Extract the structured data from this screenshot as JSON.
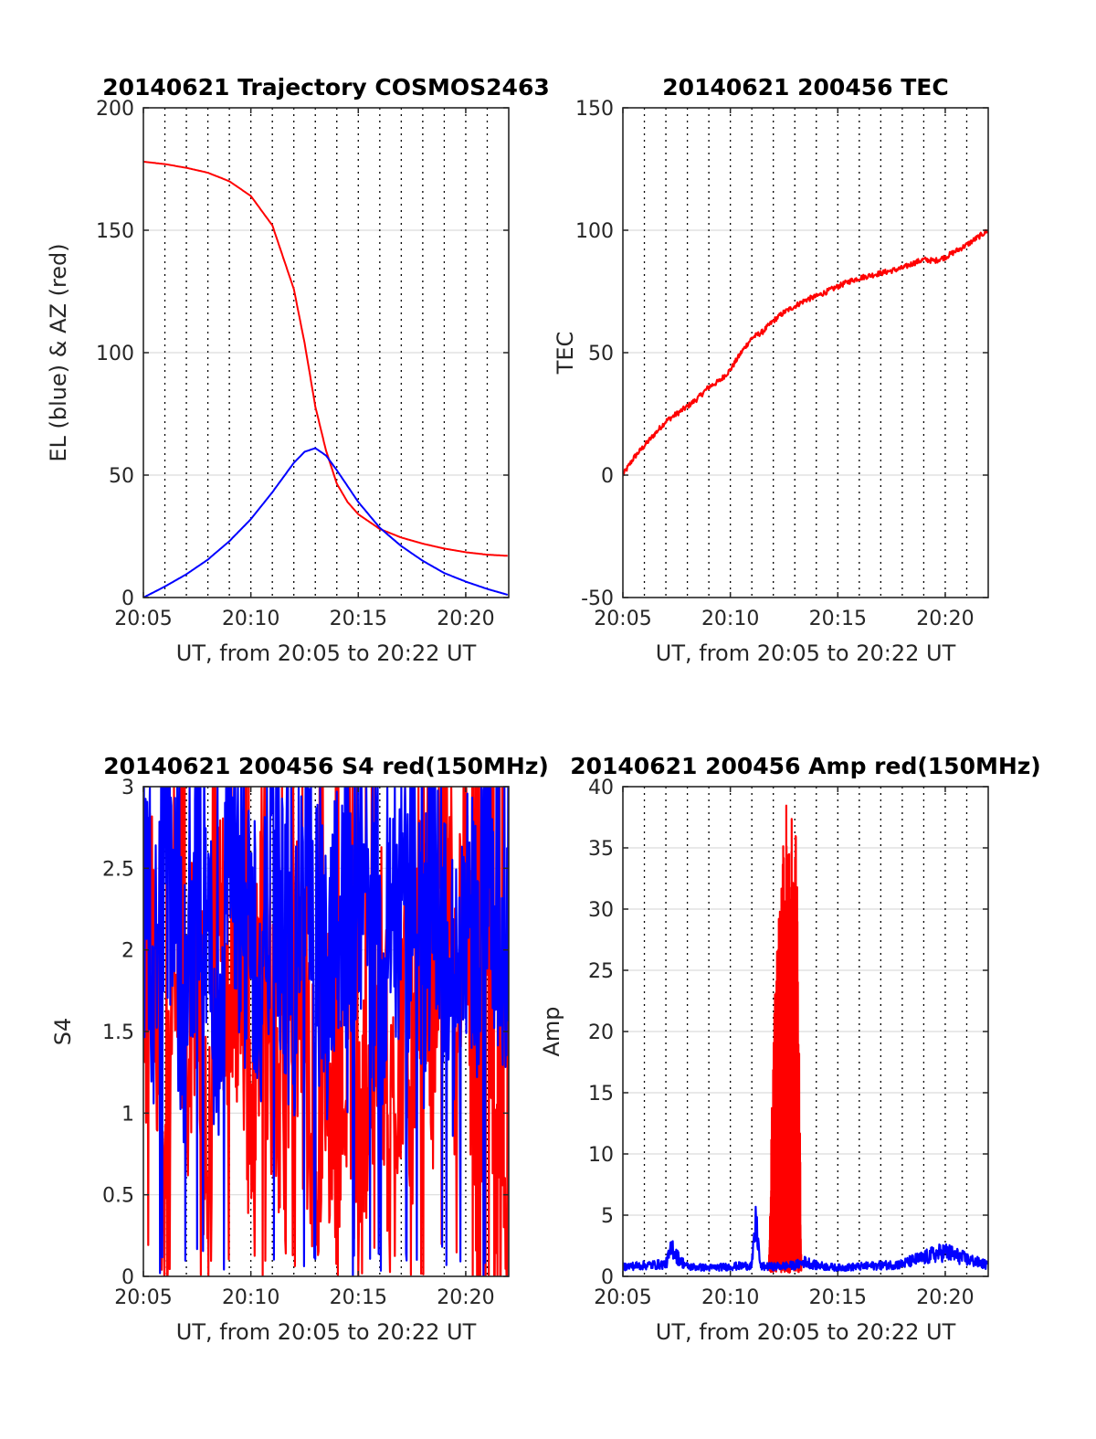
{
  "chart_data": [
    {
      "type": "line",
      "title": "20140621 Trajectory COSMOS2463",
      "xlabel": "UT, from 20:05 to 20:22 UT",
      "ylabel": "EL (blue) & AZ (red)",
      "xlim": [
        0,
        17
      ],
      "ylim": [
        0,
        200
      ],
      "xticks": [
        0,
        5,
        10,
        15
      ],
      "xticklabels": [
        "20:05",
        "20:10",
        "20:15",
        "20:20"
      ],
      "yticks": [
        0,
        50,
        100,
        150,
        200
      ],
      "yticklabels": [
        "0",
        "50",
        "100",
        "150",
        "200"
      ],
      "grid": true,
      "series": [
        {
          "color": "#ff0000",
          "x": [
            0,
            1,
            2,
            3,
            4,
            5,
            6,
            7,
            7.5,
            8,
            8.5,
            9,
            9.5,
            10,
            11,
            12,
            13,
            14,
            15,
            16,
            17
          ],
          "values": [
            178,
            177,
            175.5,
            173.5,
            170,
            164,
            152,
            126,
            104,
            78,
            60,
            46.5,
            39,
            34,
            28,
            24.5,
            22,
            20,
            18.5,
            17.5,
            17
          ]
        },
        {
          "color": "#0000ff",
          "x": [
            0,
            1,
            2,
            3,
            4,
            5,
            6,
            7,
            7.5,
            8,
            8.5,
            9,
            10,
            11,
            12,
            13,
            14,
            15,
            16,
            17
          ],
          "values": [
            0,
            4.5,
            9.5,
            15.5,
            23,
            32,
            43,
            55,
            59.5,
            61,
            58,
            52,
            39,
            28.5,
            21,
            15,
            10,
            6.5,
            3.5,
            1
          ]
        }
      ]
    },
    {
      "type": "line",
      "title": "20140621 200456 TEC",
      "xlabel": "UT, from 20:05 to 20:22 UT",
      "ylabel": "TEC",
      "xlim": [
        0,
        17
      ],
      "ylim": [
        -50,
        150
      ],
      "xticks": [
        0,
        5,
        10,
        15
      ],
      "xticklabels": [
        "20:05",
        "20:10",
        "20:15",
        "20:20"
      ],
      "yticks": [
        -50,
        0,
        50,
        100,
        150
      ],
      "yticklabels": [
        "-50",
        "0",
        "50",
        "100",
        "150"
      ],
      "grid": true,
      "series": [
        {
          "color": "#ff0000",
          "x": [
            0,
            0.5,
            1,
            1.5,
            2,
            2.5,
            3,
            3.5,
            4,
            4.5,
            5,
            5.5,
            6,
            6.5,
            7,
            7.5,
            8,
            8.5,
            9,
            9.5,
            10,
            10.5,
            11,
            11.5,
            12,
            12.5,
            13,
            13.5,
            14,
            14.5,
            15,
            15.5,
            16,
            16.5,
            17
          ],
          "values": [
            0,
            7,
            12,
            17,
            22,
            25,
            28,
            31.5,
            36,
            38.5,
            43,
            50,
            56,
            58.5,
            63,
            66.5,
            69,
            71.5,
            73,
            75,
            77,
            79,
            80.5,
            81.5,
            82.5,
            83.5,
            84.5,
            86.5,
            88,
            87.5,
            89,
            91.5,
            94,
            97,
            100
          ]
        }
      ]
    },
    {
      "type": "line",
      "title": "20140621 200456 S4 red(150MHz)",
      "xlabel": "UT, from 20:05 to 20:22 UT",
      "ylabel": "S4",
      "xlim": [
        0,
        17
      ],
      "ylim": [
        0,
        3
      ],
      "xticks": [
        0,
        5,
        10,
        15
      ],
      "xticklabels": [
        "20:05",
        "20:10",
        "20:15",
        "20:20"
      ],
      "yticks": [
        0,
        0.5,
        1,
        1.5,
        2,
        2.5,
        3
      ],
      "yticklabels": [
        "0",
        "0.5",
        "1",
        "1.5",
        "2",
        "2.5",
        "3"
      ],
      "grid": true,
      "series": [
        {
          "color": "#ff0000",
          "x": [
            0,
            0.5,
            1,
            1.5,
            2,
            2.5,
            3,
            3.5,
            4,
            4.5,
            5,
            5.5,
            6,
            6.5,
            7,
            7.5,
            8,
            8.5,
            9,
            9.5,
            10,
            10.5,
            11,
            11.5,
            12,
            12.5,
            13,
            13.5,
            14,
            14.5,
            15,
            15.5,
            16,
            16.5,
            17
          ],
          "values": [
            1.7,
            2.2,
            0.2,
            2.5,
            1.3,
            2.2,
            0.3,
            2.4,
            1.6,
            2.0,
            1.0,
            2.1,
            1.4,
            0.9,
            2.0,
            1.3,
            0.8,
            1.4,
            0.7,
            1.6,
            0.6,
            1.2,
            1.9,
            0.8,
            1.6,
            1.3,
            2.2,
            1.5,
            2.4,
            1.6,
            2.6,
            0.2,
            2.4,
            0.2,
            1.9
          ]
        },
        {
          "color": "#0000ff",
          "x": [
            0,
            0.5,
            1,
            1.5,
            2,
            2.5,
            3,
            3.5,
            4,
            4.5,
            5,
            5.5,
            6,
            6.5,
            7,
            7.5,
            8,
            8.5,
            9,
            9.5,
            10,
            10.5,
            11,
            11.5,
            12,
            12.5,
            13,
            13.5,
            14,
            14.5,
            15,
            15.5,
            16,
            16.5,
            17
          ],
          "values": [
            2.2,
            1.7,
            2.8,
            2.0,
            1.6,
            2.6,
            2.1,
            1.5,
            2.7,
            1.9,
            2.3,
            1.6,
            2.8,
            2.0,
            1.7,
            2.5,
            2.1,
            1.8,
            2.4,
            1.9,
            2.6,
            2.2,
            1.7,
            2.5,
            2.0,
            2.3,
            1.8,
            2.6,
            2.1,
            1.6,
            2.4,
            2.0,
            2.7,
            2.2,
            2.1
          ]
        }
      ]
    },
    {
      "type": "line",
      "title": "20140621 200456 Amp red(150MHz)",
      "xlabel": "UT, from 20:05 to 20:22 UT",
      "ylabel": "Amp",
      "xlim": [
        0,
        17
      ],
      "ylim": [
        0,
        40
      ],
      "xticks": [
        0,
        5,
        10,
        15
      ],
      "xticklabels": [
        "20:05",
        "20:10",
        "20:15",
        "20:20"
      ],
      "yticks": [
        0,
        5,
        10,
        15,
        20,
        25,
        30,
        35,
        40
      ],
      "yticklabels": [
        "0",
        "5",
        "10",
        "15",
        "20",
        "25",
        "30",
        "35",
        "40"
      ],
      "grid": true,
      "series": [
        {
          "color": "#ff0000",
          "x": [
            6.8,
            6.9,
            7.0,
            7.1,
            7.2,
            7.3,
            7.4,
            7.5,
            7.6,
            7.7,
            7.8,
            7.9,
            8.0,
            8.1,
            8.2,
            8.3
          ],
          "values": [
            0.5,
            11,
            20,
            26,
            28,
            31,
            33,
            37.5,
            39.3,
            36.5,
            38.5,
            37,
            38,
            35,
            20,
            0.5
          ]
        },
        {
          "color": "#0000ff",
          "x": [
            0,
            1,
            2,
            2.3,
            2.6,
            3,
            4,
            5,
            6,
            6.2,
            6.4,
            7,
            8,
            8.5,
            9,
            10,
            11,
            12,
            13,
            13.5,
            14,
            14.5,
            15,
            15.5,
            16,
            17
          ],
          "values": [
            0.8,
            0.9,
            1.0,
            2.4,
            1.4,
            0.8,
            0.7,
            0.8,
            0.9,
            4.5,
            0.8,
            0.8,
            0.9,
            1.2,
            0.9,
            0.7,
            0.8,
            0.9,
            1.0,
            1.3,
            1.5,
            1.8,
            2.0,
            1.7,
            1.4,
            0.9
          ]
        }
      ]
    }
  ]
}
